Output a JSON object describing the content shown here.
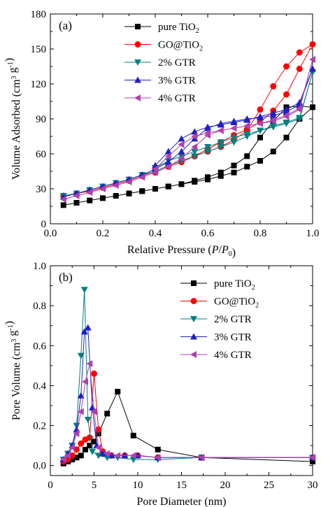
{
  "chart_data": [
    {
      "panel_label": "(a)",
      "type": "line",
      "xlabel": "Relative Pressure (P/P0)",
      "xlabel_parts": [
        "Relative Pressure (",
        "P",
        "/",
        "P",
        "0",
        ")"
      ],
      "ylabel": "Volume Adsorbed (cm3 g-1)",
      "ylabel_parts": [
        "Volume Adsorbed (cm",
        "3",
        " g",
        "-1",
        ")"
      ],
      "xlim": [
        0.0,
        1.0
      ],
      "ylim": [
        0,
        180
      ],
      "xticks": [
        0.0,
        0.2,
        0.4,
        0.6,
        0.8,
        1.0
      ],
      "xtick_labels": [
        "0.0",
        "0.2",
        "0.4",
        "0.6",
        "0.8",
        "1.0"
      ],
      "yticks": [
        0,
        30,
        60,
        90,
        120,
        150,
        180
      ],
      "ytick_labels": [
        "0",
        "30",
        "60",
        "90",
        "120",
        "150",
        "180"
      ],
      "legend_position": "top-right",
      "series": [
        {
          "name": "pure TiO2",
          "name_parts": [
            "pure TiO",
            "2"
          ],
          "color": "#000000",
          "marker": "square",
          "x": [
            0.05,
            0.1,
            0.15,
            0.2,
            0.25,
            0.3,
            0.35,
            0.4,
            0.45,
            0.5,
            0.55,
            0.6,
            0.65,
            0.7,
            0.75,
            0.8,
            0.85,
            0.9,
            0.95,
            1.0,
            0.95,
            0.9,
            0.85,
            0.8,
            0.75,
            0.7,
            0.65,
            0.6,
            0.55,
            0.5,
            0.45,
            0.4,
            0.35,
            0.3
          ],
          "y": [
            16,
            18,
            20,
            22,
            24,
            26,
            28,
            30,
            32,
            34,
            37,
            40,
            44,
            50,
            58,
            74,
            88,
            100,
            101,
            100,
            90,
            74,
            62,
            54,
            49,
            44,
            41,
            38,
            36,
            34,
            32,
            30,
            28,
            26
          ]
        },
        {
          "name": "GO@TiO2",
          "name_parts": [
            "GO@TiO",
            "2"
          ],
          "color": "#ff0000",
          "marker": "circle",
          "x": [
            0.05,
            0.1,
            0.15,
            0.2,
            0.25,
            0.3,
            0.35,
            0.4,
            0.45,
            0.5,
            0.55,
            0.6,
            0.65,
            0.7,
            0.75,
            0.8,
            0.85,
            0.9,
            0.95,
            1.0,
            0.95,
            0.9,
            0.85,
            0.8,
            0.75,
            0.7,
            0.65,
            0.6,
            0.55,
            0.5,
            0.45,
            0.4
          ],
          "y": [
            24,
            26,
            28,
            31,
            34,
            37,
            41,
            45,
            50,
            54,
            58,
            62,
            66,
            72,
            80,
            98,
            118,
            135,
            147,
            154,
            133,
            111,
            97,
            87,
            81,
            76,
            70,
            64,
            58,
            53,
            49,
            44
          ]
        },
        {
          "name": "2% GTR",
          "name_parts": [
            "2% GTR"
          ],
          "color": "#008080",
          "marker": "triangle-down",
          "x": [
            0.05,
            0.1,
            0.15,
            0.2,
            0.25,
            0.3,
            0.35,
            0.4,
            0.45,
            0.5,
            0.55,
            0.6,
            0.65,
            0.7,
            0.75,
            0.8,
            0.85,
            0.9,
            0.95,
            1.0,
            0.95,
            0.9,
            0.85,
            0.8,
            0.75,
            0.7,
            0.65,
            0.6,
            0.55,
            0.5,
            0.45,
            0.4
          ],
          "y": [
            24,
            26,
            29,
            32,
            35,
            38,
            42,
            45,
            50,
            54,
            58,
            62,
            66,
            70,
            75,
            80,
            83,
            86,
            90,
            130,
            91,
            87,
            84,
            80,
            77,
            74,
            70,
            66,
            62,
            58,
            54,
            48
          ]
        },
        {
          "name": "3% GTR",
          "name_parts": [
            "3% GTR"
          ],
          "color": "#1f1fc4",
          "marker": "triangle-up",
          "x": [
            0.05,
            0.1,
            0.15,
            0.2,
            0.25,
            0.3,
            0.35,
            0.4,
            0.45,
            0.5,
            0.55,
            0.6,
            0.65,
            0.7,
            0.75,
            0.8,
            0.85,
            0.9,
            0.95,
            1.0,
            0.95,
            0.9,
            0.85,
            0.8,
            0.75,
            0.7,
            0.65,
            0.6,
            0.55,
            0.5,
            0.45,
            0.4
          ],
          "y": [
            23,
            26,
            29,
            32,
            35,
            38,
            42,
            47,
            53,
            62,
            73,
            82,
            86,
            88,
            90,
            91,
            93,
            96,
            102,
            133,
            104,
            98,
            95,
            92,
            89,
            87,
            85,
            83,
            79,
            73,
            62,
            50
          ]
        },
        {
          "name": "4% GTR",
          "name_parts": [
            "4% GTR"
          ],
          "color": "#b040b0",
          "marker": "triangle-left",
          "x": [
            0.05,
            0.1,
            0.15,
            0.2,
            0.25,
            0.3,
            0.35,
            0.4,
            0.45,
            0.5,
            0.55,
            0.6,
            0.65,
            0.7,
            0.75,
            0.8,
            0.85,
            0.9,
            0.95,
            1.0,
            0.95,
            0.9,
            0.85,
            0.8,
            0.75,
            0.7,
            0.65,
            0.6,
            0.55,
            0.5,
            0.45,
            0.4
          ],
          "y": [
            21,
            24,
            27,
            30,
            33,
            36,
            40,
            44,
            49,
            56,
            66,
            76,
            80,
            82,
            84,
            86,
            88,
            92,
            98,
            141,
            99,
            93,
            89,
            86,
            84,
            82,
            80,
            78,
            75,
            68,
            58,
            47
          ]
        }
      ]
    },
    {
      "panel_label": "(b)",
      "type": "line",
      "xlabel": "Pore Diameter (nm)",
      "xlabel_parts": [
        "Pore Diameter (nm)"
      ],
      "ylabel": "Pore Volume (cm3 g-1)",
      "ylabel_parts": [
        "Pore Volume (cm",
        "3",
        " g",
        "-1",
        ")"
      ],
      "xlim": [
        0,
        30
      ],
      "ylim": [
        -0.05,
        1.0
      ],
      "xticks": [
        0,
        5,
        10,
        15,
        20,
        25,
        30
      ],
      "xtick_labels": [
        "0",
        "5",
        "10",
        "15",
        "20",
        "25",
        "30"
      ],
      "yticks": [
        0.0,
        0.2,
        0.4,
        0.6,
        0.8,
        1.0
      ],
      "ytick_labels": [
        "0.0",
        "0.2",
        "0.4",
        "0.6",
        "0.8",
        "1.0"
      ],
      "legend_position": "top-right",
      "series": [
        {
          "name": "pure TiO2",
          "name_parts": [
            "pure TiO",
            "2"
          ],
          "color": "#000000",
          "marker": "square",
          "x": [
            1.5,
            2.0,
            2.5,
            3.0,
            3.5,
            4.0,
            4.5,
            5.0,
            5.5,
            6.5,
            7.7,
            9.5,
            12.3,
            17.3,
            30.0
          ],
          "y": [
            0.01,
            0.02,
            0.03,
            0.04,
            0.05,
            0.08,
            0.1,
            0.12,
            0.16,
            0.26,
            0.37,
            0.15,
            0.08,
            0.04,
            0.02
          ]
        },
        {
          "name": "GO@TiO2",
          "name_parts": [
            "GO@TiO",
            "2"
          ],
          "color": "#ff0000",
          "marker": "circle",
          "x": [
            1.5,
            2.0,
            2.5,
            3.0,
            3.5,
            4.0,
            4.5,
            5.0,
            5.5,
            6.0,
            7.0,
            8.5,
            10.0,
            12.3,
            17.3,
            30.0
          ],
          "y": [
            0.02,
            0.03,
            0.05,
            0.08,
            0.11,
            0.13,
            0.14,
            0.46,
            0.18,
            0.07,
            0.05,
            0.05,
            0.05,
            0.04,
            0.04,
            0.04
          ]
        },
        {
          "name": "2% GTR",
          "name_parts": [
            "2% GTR"
          ],
          "color": "#008080",
          "marker": "triangle-down",
          "x": [
            1.5,
            2.0,
            2.5,
            3.0,
            3.5,
            3.9,
            4.3,
            4.8,
            5.5,
            6.5,
            7.7,
            9.5,
            12.3,
            17.3,
            30.0
          ],
          "y": [
            0.03,
            0.06,
            0.1,
            0.2,
            0.55,
            0.88,
            0.23,
            0.07,
            0.05,
            0.04,
            0.04,
            0.03,
            0.03,
            0.04,
            0.04
          ]
        },
        {
          "name": "3% GTR",
          "name_parts": [
            "3% GTR"
          ],
          "color": "#1f1fc4",
          "marker": "triangle-up",
          "x": [
            1.5,
            2.0,
            2.5,
            3.0,
            3.5,
            3.9,
            4.3,
            4.8,
            5.3,
            6.0,
            7.0,
            8.5,
            10.0,
            12.3,
            17.3,
            30.0
          ],
          "y": [
            0.03,
            0.06,
            0.1,
            0.18,
            0.35,
            0.67,
            0.69,
            0.29,
            0.1,
            0.06,
            0.05,
            0.05,
            0.05,
            0.04,
            0.04,
            0.04
          ]
        },
        {
          "name": "4% GTR",
          "name_parts": [
            "4% GTR"
          ],
          "color": "#b040b0",
          "marker": "triangle-left",
          "x": [
            1.5,
            2.0,
            2.5,
            3.0,
            3.5,
            4.0,
            4.5,
            5.0,
            5.5,
            6.5,
            7.7,
            9.5,
            12.3,
            17.3,
            30.0
          ],
          "y": [
            0.03,
            0.05,
            0.09,
            0.16,
            0.27,
            0.42,
            0.51,
            0.27,
            0.09,
            0.06,
            0.05,
            0.05,
            0.04,
            0.04,
            0.04
          ]
        }
      ]
    }
  ]
}
